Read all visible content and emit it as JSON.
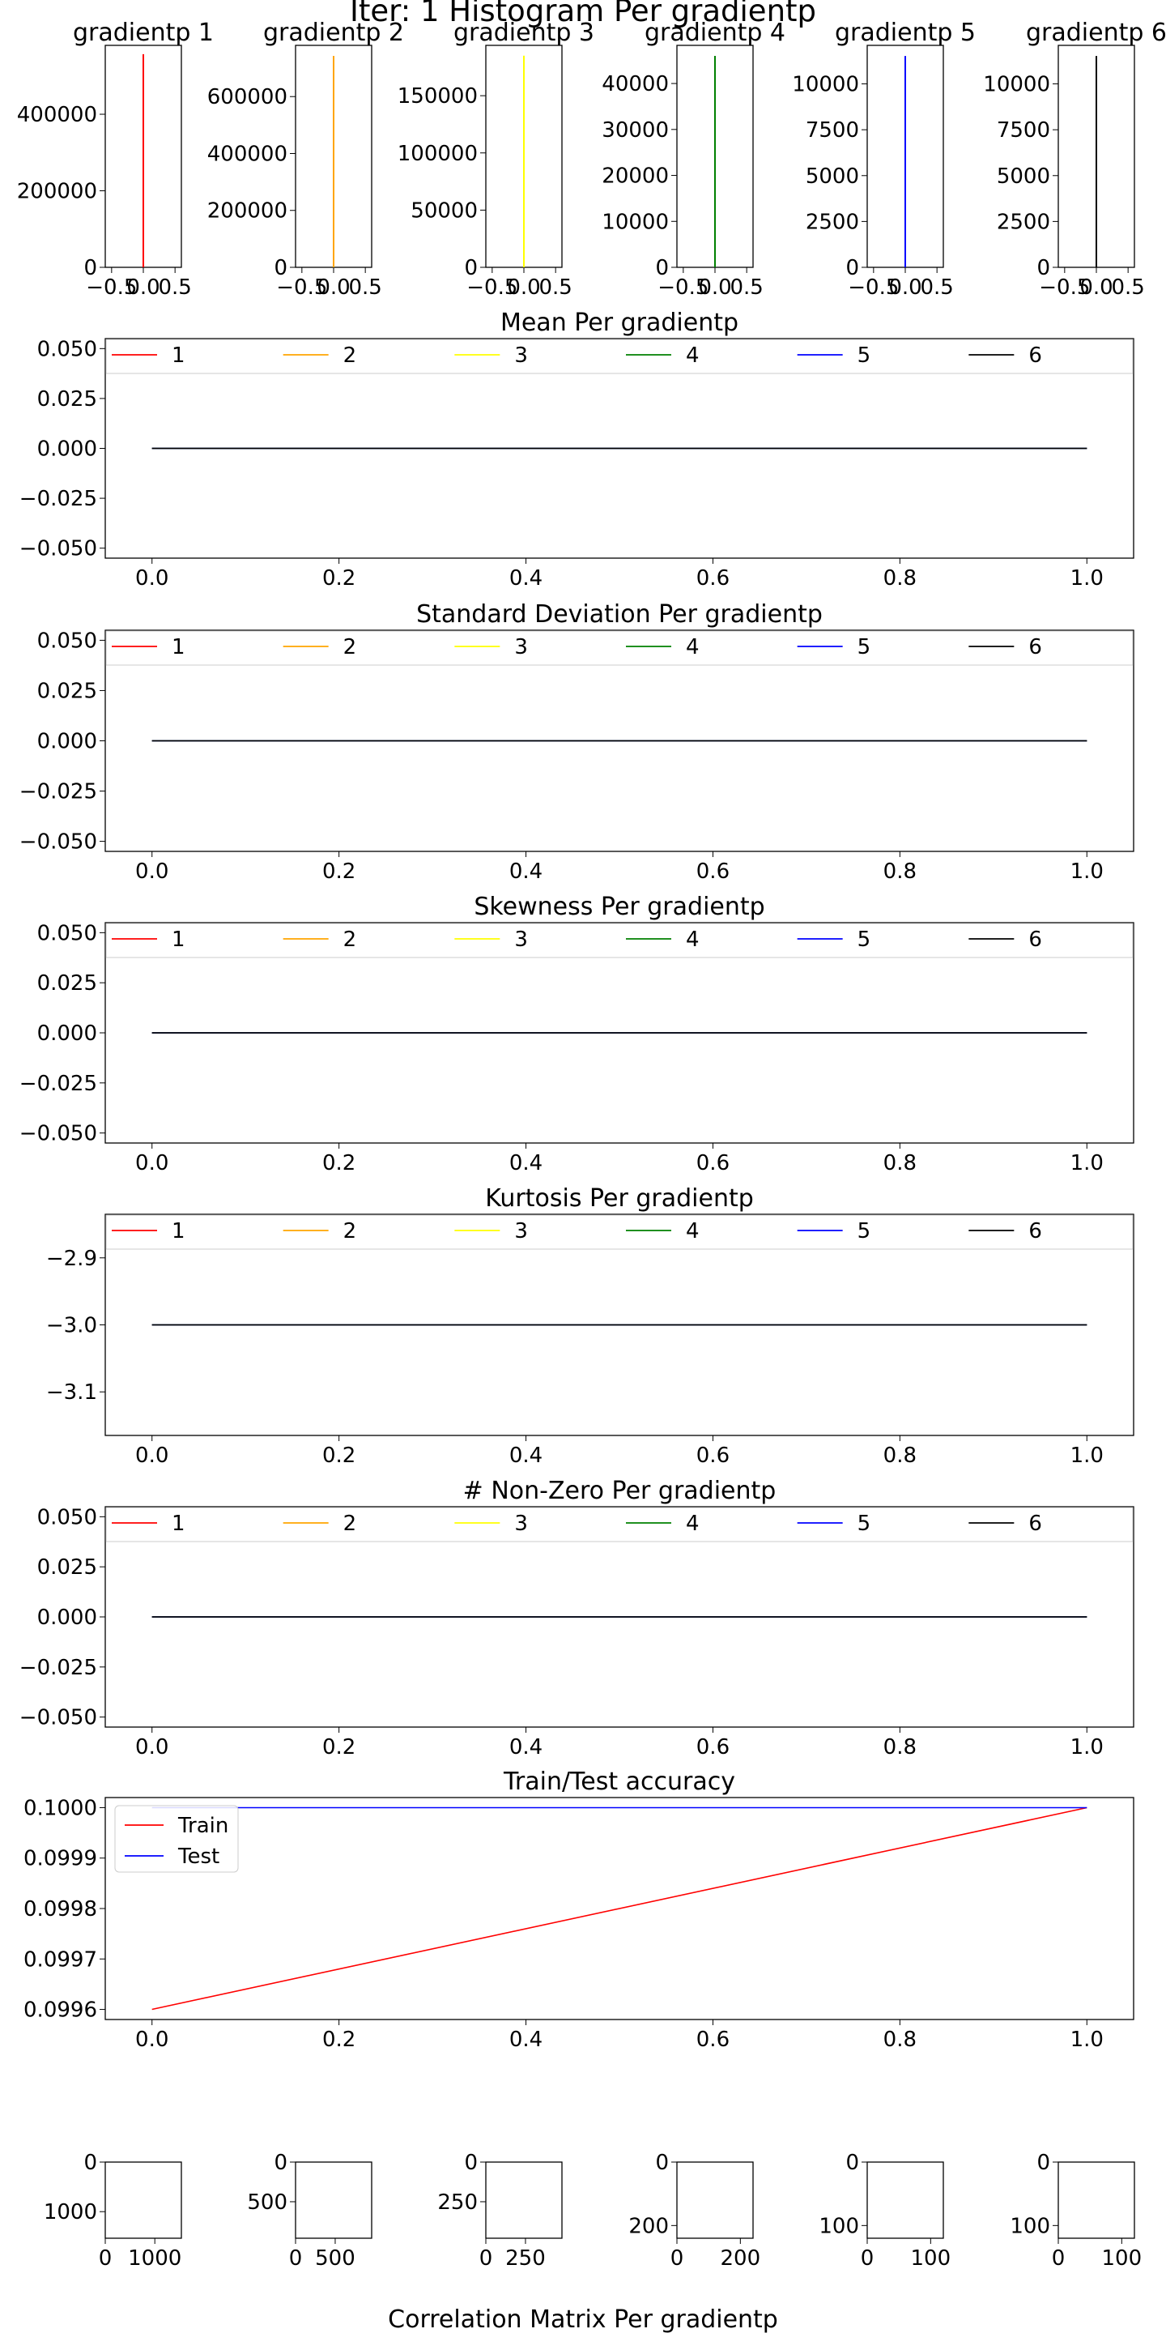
{
  "figure": {
    "title": "Iter: 1 Histogram Per gradientp",
    "bottom_title": "Correlation Matrix Per gradientp"
  },
  "colors": {
    "series": [
      "#ff0000",
      "#ffa500",
      "#ffff00",
      "#008000",
      "#0000ff",
      "#000000"
    ],
    "train": "#ff0000",
    "test": "#0000ff",
    "legend_border": "#cccccc",
    "axes": "#000000"
  },
  "chart_data": [
    {
      "id": "hist1",
      "type": "bar",
      "title": "gradientp 1",
      "color_index": 0,
      "x": [
        0.0
      ],
      "values": [
        557000
      ],
      "xlim": [
        -0.6,
        0.6
      ],
      "ylim": [
        0,
        580000
      ],
      "xticks": [
        -0.5,
        0.0,
        0.5
      ],
      "xtick_labels": [
        "−0.5",
        "0.0",
        "0.5"
      ],
      "yticks": [
        0,
        200000,
        400000
      ],
      "ytick_labels": [
        "0",
        "200000",
        "400000"
      ]
    },
    {
      "id": "hist2",
      "type": "bar",
      "title": "gradientp 2",
      "color_index": 1,
      "x": [
        0.0
      ],
      "values": [
        743000
      ],
      "xlim": [
        -0.6,
        0.6
      ],
      "ylim": [
        0,
        780000
      ],
      "xticks": [
        -0.5,
        0.0,
        0.5
      ],
      "xtick_labels": [
        "−0.5",
        "0.0",
        "0.5"
      ],
      "yticks": [
        0,
        200000,
        400000,
        600000
      ],
      "ytick_labels": [
        "0",
        "200000",
        "400000",
        "600000"
      ]
    },
    {
      "id": "hist3",
      "type": "bar",
      "title": "gradientp 3",
      "color_index": 2,
      "x": [
        0.0
      ],
      "values": [
        185000
      ],
      "xlim": [
        -0.6,
        0.6
      ],
      "ylim": [
        0,
        194000
      ],
      "xticks": [
        -0.5,
        0.0,
        0.5
      ],
      "xtick_labels": [
        "−0.5",
        "0.0",
        "0.5"
      ],
      "yticks": [
        0,
        50000,
        100000,
        150000
      ],
      "ytick_labels": [
        "0",
        "50000",
        "100000",
        "150000"
      ]
    },
    {
      "id": "hist4",
      "type": "bar",
      "title": "gradientp 4",
      "color_index": 3,
      "x": [
        0.0
      ],
      "values": [
        46000
      ],
      "xlim": [
        -0.6,
        0.6
      ],
      "ylim": [
        0,
        48300
      ],
      "xticks": [
        -0.5,
        0.0,
        0.5
      ],
      "xtick_labels": [
        "−0.5",
        "0.0",
        "0.5"
      ],
      "yticks": [
        0,
        10000,
        20000,
        30000,
        40000
      ],
      "ytick_labels": [
        "0",
        "10000",
        "20000",
        "30000",
        "40000"
      ]
    },
    {
      "id": "hist5",
      "type": "bar",
      "title": "gradientp 5",
      "color_index": 4,
      "x": [
        0.0
      ],
      "values": [
        11520
      ],
      "xlim": [
        -0.6,
        0.6
      ],
      "ylim": [
        0,
        12100
      ],
      "xticks": [
        -0.5,
        0.0,
        0.5
      ],
      "xtick_labels": [
        "−0.5",
        "0.0",
        "0.5"
      ],
      "yticks": [
        0,
        2500,
        5000,
        7500,
        10000
      ],
      "ytick_labels": [
        "0",
        "2500",
        "5000",
        "7500",
        "10000"
      ]
    },
    {
      "id": "hist6",
      "type": "bar",
      "title": "gradientp 6",
      "color_index": 5,
      "x": [
        0.0
      ],
      "values": [
        11520
      ],
      "xlim": [
        -0.6,
        0.6
      ],
      "ylim": [
        0,
        12100
      ],
      "xticks": [
        -0.5,
        0.0,
        0.5
      ],
      "xtick_labels": [
        "−0.5",
        "0.0",
        "0.5"
      ],
      "yticks": [
        0,
        2500,
        5000,
        7500,
        10000
      ],
      "ytick_labels": [
        "0",
        "2500",
        "5000",
        "7500",
        "10000"
      ]
    },
    {
      "id": "mean",
      "type": "line",
      "title": "Mean Per gradientp",
      "x": [
        0.0,
        1.0
      ],
      "series": [
        {
          "name": "1",
          "values": [
            0.0,
            0.0
          ]
        },
        {
          "name": "2",
          "values": [
            0.0,
            0.0
          ]
        },
        {
          "name": "3",
          "values": [
            0.0,
            0.0
          ]
        },
        {
          "name": "4",
          "values": [
            0.0,
            0.0
          ]
        },
        {
          "name": "5",
          "values": [
            0.0,
            0.0
          ]
        },
        {
          "name": "6",
          "values": [
            0.0,
            0.0
          ]
        }
      ],
      "xlim": [
        -0.05,
        1.05
      ],
      "ylim": [
        -0.055,
        0.055
      ],
      "xticks": [
        0,
        0.2,
        0.4,
        0.6,
        0.8,
        1.0
      ],
      "xtick_labels": [
        "0.0",
        "0.2",
        "0.4",
        "0.6",
        "0.8",
        "1.0"
      ],
      "yticks": [
        0.05,
        0.025,
        0,
        -0.025,
        -0.05
      ],
      "ytick_labels": [
        "0.050",
        "0.025",
        "0.000",
        "−0.025",
        "−0.050"
      ],
      "legend": "top, full width"
    },
    {
      "id": "std",
      "type": "line",
      "title": "Standard Deviation Per gradientp",
      "x": [
        0.0,
        1.0
      ],
      "series": [
        {
          "name": "1",
          "values": [
            0.0,
            0.0
          ]
        },
        {
          "name": "2",
          "values": [
            0.0,
            0.0
          ]
        },
        {
          "name": "3",
          "values": [
            0.0,
            0.0
          ]
        },
        {
          "name": "4",
          "values": [
            0.0,
            0.0
          ]
        },
        {
          "name": "5",
          "values": [
            0.0,
            0.0
          ]
        },
        {
          "name": "6",
          "values": [
            0.0,
            0.0
          ]
        }
      ],
      "xlim": [
        -0.05,
        1.05
      ],
      "ylim": [
        -0.055,
        0.055
      ],
      "xticks": [
        0,
        0.2,
        0.4,
        0.6,
        0.8,
        1.0
      ],
      "xtick_labels": [
        "0.0",
        "0.2",
        "0.4",
        "0.6",
        "0.8",
        "1.0"
      ],
      "yticks": [
        0.05,
        0.025,
        0,
        -0.025,
        -0.05
      ],
      "ytick_labels": [
        "0.050",
        "0.025",
        "0.000",
        "−0.025",
        "−0.050"
      ],
      "legend": "top, full width"
    },
    {
      "id": "skew",
      "type": "line",
      "title": "Skewness Per gradientp",
      "x": [
        0.0,
        1.0
      ],
      "series": [
        {
          "name": "1",
          "values": [
            0.0,
            0.0
          ]
        },
        {
          "name": "2",
          "values": [
            0.0,
            0.0
          ]
        },
        {
          "name": "3",
          "values": [
            0.0,
            0.0
          ]
        },
        {
          "name": "4",
          "values": [
            0.0,
            0.0
          ]
        },
        {
          "name": "5",
          "values": [
            0.0,
            0.0
          ]
        },
        {
          "name": "6",
          "values": [
            0.0,
            0.0
          ]
        }
      ],
      "xlim": [
        -0.05,
        1.05
      ],
      "ylim": [
        -0.055,
        0.055
      ],
      "xticks": [
        0,
        0.2,
        0.4,
        0.6,
        0.8,
        1.0
      ],
      "xtick_labels": [
        "0.0",
        "0.2",
        "0.4",
        "0.6",
        "0.8",
        "1.0"
      ],
      "yticks": [
        0.05,
        0.025,
        0,
        -0.025,
        -0.05
      ],
      "ytick_labels": [
        "0.050",
        "0.025",
        "0.000",
        "−0.025",
        "−0.050"
      ],
      "legend": "top, full width"
    },
    {
      "id": "kurt",
      "type": "line",
      "title": "Kurtosis Per gradientp",
      "x": [
        0.0,
        1.0
      ],
      "series": [
        {
          "name": "1",
          "values": [
            -3.0,
            -3.0
          ]
        },
        {
          "name": "2",
          "values": [
            -3.0,
            -3.0
          ]
        },
        {
          "name": "3",
          "values": [
            -3.0,
            -3.0
          ]
        },
        {
          "name": "4",
          "values": [
            -3.0,
            -3.0
          ]
        },
        {
          "name": "5",
          "values": [
            -3.0,
            -3.0
          ]
        },
        {
          "name": "6",
          "values": [
            -3.0,
            -3.0
          ]
        }
      ],
      "xlim": [
        -0.05,
        1.05
      ],
      "ylim": [
        -3.165,
        -2.835
      ],
      "xticks": [
        0,
        0.2,
        0.4,
        0.6,
        0.8,
        1.0
      ],
      "xtick_labels": [
        "0.0",
        "0.2",
        "0.4",
        "0.6",
        "0.8",
        "1.0"
      ],
      "yticks": [
        -2.9,
        -3.0,
        -3.1
      ],
      "ytick_labels": [
        "−2.9",
        "−3.0",
        "−3.1"
      ],
      "legend": "top, full width"
    },
    {
      "id": "nonzero",
      "type": "line",
      "title": "# Non-Zero Per gradientp",
      "x": [
        0.0,
        1.0
      ],
      "series": [
        {
          "name": "1",
          "values": [
            0.0,
            0.0
          ]
        },
        {
          "name": "2",
          "values": [
            0.0,
            0.0
          ]
        },
        {
          "name": "3",
          "values": [
            0.0,
            0.0
          ]
        },
        {
          "name": "4",
          "values": [
            0.0,
            0.0
          ]
        },
        {
          "name": "5",
          "values": [
            0.0,
            0.0
          ]
        },
        {
          "name": "6",
          "values": [
            0.0,
            0.0
          ]
        }
      ],
      "xlim": [
        -0.05,
        1.05
      ],
      "ylim": [
        -0.055,
        0.055
      ],
      "xticks": [
        0,
        0.2,
        0.4,
        0.6,
        0.8,
        1.0
      ],
      "xtick_labels": [
        "0.0",
        "0.2",
        "0.4",
        "0.6",
        "0.8",
        "1.0"
      ],
      "yticks": [
        0.05,
        0.025,
        0,
        -0.025,
        -0.05
      ],
      "ytick_labels": [
        "0.050",
        "0.025",
        "0.000",
        "−0.025",
        "−0.050"
      ],
      "legend": "top, full width"
    },
    {
      "id": "acc",
      "type": "line",
      "title": "Train/Test accuracy",
      "x": [
        0.0,
        1.0
      ],
      "series": [
        {
          "name": "Train",
          "values": [
            0.0996,
            0.1
          ]
        },
        {
          "name": "Test",
          "values": [
            0.1,
            0.1
          ]
        }
      ],
      "xlim": [
        -0.05,
        1.05
      ],
      "ylim": [
        0.09958,
        0.10002
      ],
      "xticks": [
        0,
        0.2,
        0.4,
        0.6,
        0.8,
        1.0
      ],
      "xtick_labels": [
        "0.0",
        "0.2",
        "0.4",
        "0.6",
        "0.8",
        "1.0"
      ],
      "yticks": [
        0.1,
        0.0999,
        0.0998,
        0.0997,
        0.0996
      ],
      "ytick_labels": [
        "0.1000",
        "0.0999",
        "0.0998",
        "0.0997",
        "0.0996"
      ],
      "legend": "upper left"
    },
    {
      "id": "corr1",
      "type": "heatmap",
      "title": "",
      "xlim": [
        0,
        1536
      ],
      "ylim": [
        1536,
        0
      ],
      "xticks": [
        0,
        1000
      ],
      "xtick_labels": [
        "0",
        "1000"
      ],
      "yticks": [
        0,
        1000
      ],
      "ytick_labels": [
        "0",
        "1000"
      ]
    },
    {
      "id": "corr2",
      "type": "heatmap",
      "title": "",
      "xlim": [
        0,
        960
      ],
      "ylim": [
        960,
        0
      ],
      "xticks": [
        0,
        500
      ],
      "xtick_labels": [
        "0",
        "500"
      ],
      "yticks": [
        0,
        500
      ],
      "ytick_labels": [
        "0",
        "500"
      ]
    },
    {
      "id": "corr3",
      "type": "heatmap",
      "title": "",
      "xlim": [
        0,
        480
      ],
      "ylim": [
        480,
        0
      ],
      "xticks": [
        0,
        250
      ],
      "xtick_labels": [
        "0",
        "250"
      ],
      "yticks": [
        0,
        250
      ],
      "ytick_labels": [
        "0",
        "250"
      ]
    },
    {
      "id": "corr4",
      "type": "heatmap",
      "title": "",
      "xlim": [
        0,
        240
      ],
      "ylim": [
        240,
        0
      ],
      "xticks": [
        0,
        200
      ],
      "xtick_labels": [
        "0",
        "200"
      ],
      "yticks": [
        0,
        200
      ],
      "ytick_labels": [
        "0",
        "200"
      ]
    },
    {
      "id": "corr5",
      "type": "heatmap",
      "title": "",
      "xlim": [
        0,
        120
      ],
      "ylim": [
        120,
        0
      ],
      "xticks": [
        0,
        100
      ],
      "xtick_labels": [
        "0",
        "100"
      ],
      "yticks": [
        0,
        100
      ],
      "ytick_labels": [
        "0",
        "100"
      ]
    },
    {
      "id": "corr6",
      "type": "heatmap",
      "title": "",
      "xlim": [
        0,
        120
      ],
      "ylim": [
        120,
        0
      ],
      "xticks": [
        0,
        100
      ],
      "xtick_labels": [
        "0",
        "100"
      ],
      "yticks": [
        0,
        100
      ],
      "ytick_labels": [
        "0",
        "100"
      ]
    }
  ]
}
